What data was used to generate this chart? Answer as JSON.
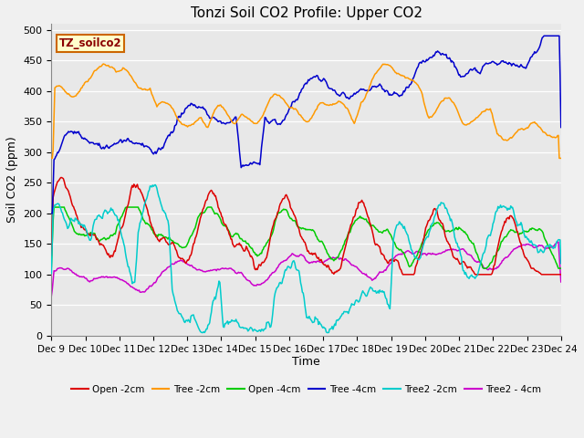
{
  "title": "Tonzi Soil CO2 Profile: Upper CO2",
  "xlabel": "Time",
  "ylabel": "Soil CO2 (ppm)",
  "legend_label": "TZ_soilco2",
  "ylim": [
    0,
    510
  ],
  "yticks": [
    0,
    50,
    100,
    150,
    200,
    250,
    300,
    350,
    400,
    450,
    500
  ],
  "xtick_labels": [
    "Dec 9",
    "Dec 10",
    "Dec 11",
    "Dec 12",
    "Dec 13",
    "Dec 14",
    "Dec 15",
    "Dec 16",
    "Dec 17",
    "Dec 18",
    "Dec 19",
    "Dec 20",
    "Dec 21",
    "Dec 22",
    "Dec 23",
    "Dec 24"
  ],
  "series": {
    "Open -2cm": {
      "color": "#dd0000",
      "lw": 1.1
    },
    "Tree -2cm": {
      "color": "#ff9900",
      "lw": 1.1
    },
    "Open -4cm": {
      "color": "#00cc00",
      "lw": 1.1
    },
    "Tree -4cm": {
      "color": "#0000cc",
      "lw": 1.1
    },
    "Tree2 -2cm": {
      "color": "#00cccc",
      "lw": 1.1
    },
    "Tree2 - 4cm": {
      "color": "#cc00cc",
      "lw": 1.1
    }
  },
  "bg_color": "#e8e8e8",
  "grid_color": "#ffffff",
  "fig_bg": "#f0f0f0"
}
